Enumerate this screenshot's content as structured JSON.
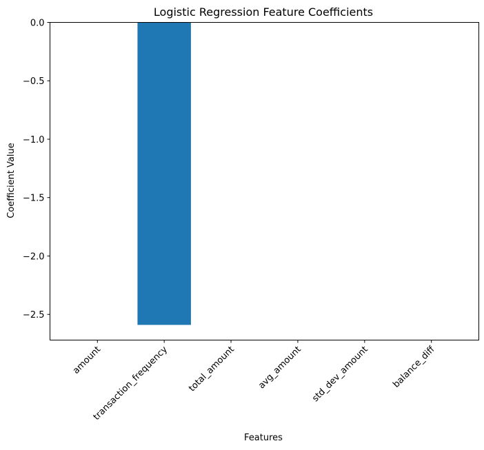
{
  "chart_data": {
    "type": "bar",
    "title": "Logistic Regression Feature Coefficients",
    "xlabel": "Features",
    "ylabel": "Coefficient Value",
    "categories": [
      "amount",
      "transaction_frequency",
      "total_amount",
      "avg_amount",
      "std_dev_amount",
      "balance_diff"
    ],
    "values": [
      0,
      -2.59,
      0,
      0,
      0,
      0
    ],
    "ylim": [
      -2.72,
      0.0
    ],
    "yticks": [
      0.0,
      -0.5,
      -1.0,
      -1.5,
      -2.0,
      -2.5
    ],
    "ytick_labels": [
      "0.0",
      "−0.5",
      "−1.0",
      "−1.5",
      "−2.0",
      "−2.5"
    ],
    "grid": false,
    "bar_color": "#1f77b4"
  }
}
